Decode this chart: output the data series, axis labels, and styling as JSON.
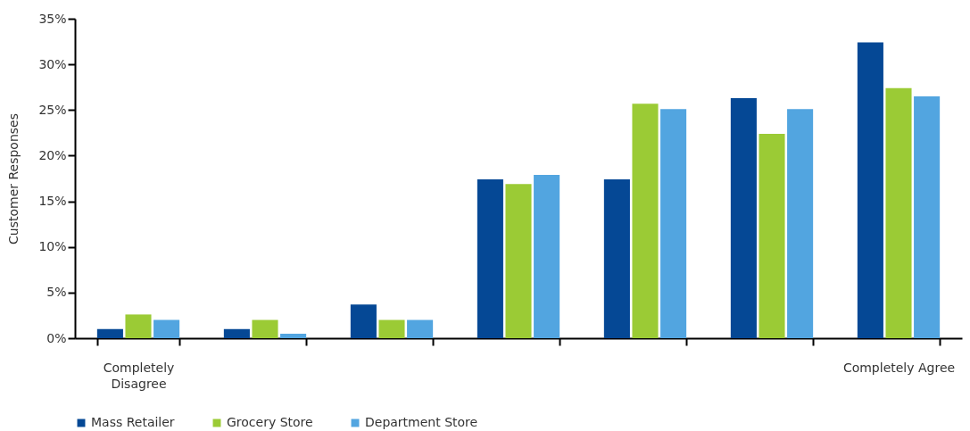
{
  "chart_data": {
    "type": "bar",
    "ylabel": "Customer Responses",
    "categories": [
      "Completely Disagree",
      null,
      null,
      null,
      null,
      null,
      "Completely Agree"
    ],
    "series": [
      {
        "name": "Mass Retailer",
        "color": "#054895",
        "values": [
          1.0,
          1.0,
          3.7,
          17.4,
          17.4,
          26.3,
          32.4
        ]
      },
      {
        "name": "Grocery Store",
        "color": "#9bcb35",
        "values": [
          2.6,
          2.0,
          2.0,
          16.9,
          25.7,
          22.4,
          27.4
        ]
      },
      {
        "name": "Department Store",
        "color": "#52a5e0",
        "values": [
          2.0,
          0.5,
          2.0,
          17.9,
          25.1,
          25.1,
          26.5
        ]
      }
    ],
    "ylim": [
      0,
      35
    ],
    "yticks": [
      {
        "value": 0,
        "label": "0%"
      },
      {
        "value": 5,
        "label": "5%"
      },
      {
        "value": 10,
        "label": "10%"
      },
      {
        "value": 15,
        "label": "15%"
      },
      {
        "value": 20,
        "label": "20%"
      },
      {
        "value": 25,
        "label": "25%"
      },
      {
        "value": 30,
        "label": "30%"
      },
      {
        "value": 35,
        "label": "35%"
      }
    ],
    "grid": false,
    "legend": "bottom"
  }
}
